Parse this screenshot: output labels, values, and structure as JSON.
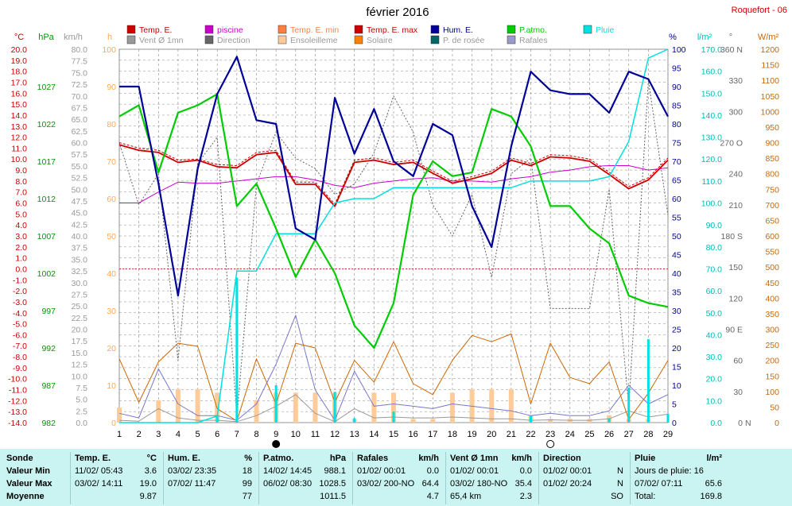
{
  "header": {
    "title": "février 2016",
    "station": "Roquefort - 06"
  },
  "colors": {
    "temp": "#cc0000",
    "temp_min": "#ff7f3f",
    "temp_max": "#cc0000",
    "pool": "#cc00cc",
    "wind": "#999999",
    "direction": "#666666",
    "sunshine": "#ffcc99",
    "solar": "#cc6600",
    "humidity": "#000099",
    "pressure": "#00cc00",
    "rain": "#00e0e0",
    "dewpoint": "#006666",
    "gusts": "#7777cc",
    "axis_temp": "#cc0000",
    "axis_press": "#009900",
    "axis_wind": "#999999",
    "axis_sun": "#ffaa55",
    "axis_hum": "#000099",
    "axis_rain": "#00bbbb",
    "axis_dir": "#666666",
    "axis_solar": "#cc6600"
  },
  "legend": [
    {
      "label": "Temp. E.",
      "color": "#cc0000"
    },
    {
      "label": "piscine",
      "color": "#cc00cc"
    },
    {
      "label": "Temp. E. min",
      "color": "#ff7f3f"
    },
    {
      "label": "Temp. E. max",
      "color": "#cc0000"
    },
    {
      "label": "Hum. E.",
      "color": "#000099"
    },
    {
      "label": "P.atmo.",
      "color": "#00cc00"
    },
    {
      "label": "Pluie",
      "color": "#00e0e0"
    },
    {
      "label": "Vent Ø 1mn",
      "color": "#999999"
    },
    {
      "label": "Direction",
      "color": "#666666"
    },
    {
      "label": "Ensoleilleme",
      "color": "#ffcc99"
    },
    {
      "label": "Solaire",
      "color": "#ff7f00"
    },
    {
      "label": "P. de rosée",
      "color": "#006666"
    },
    {
      "label": "Rafales",
      "color": "#9999cc"
    }
  ],
  "axes": {
    "temp_unit": "°C",
    "press_unit": "hPa",
    "wind_unit": "km/h",
    "sun_unit": "h",
    "hum_unit": "%",
    "rain_unit": "l/m²",
    "dir_unit": "°",
    "solar_unit": "W/m²"
  },
  "chart_data": {
    "type": "line",
    "title": "février 2016",
    "x": [
      1,
      2,
      3,
      4,
      5,
      6,
      7,
      8,
      9,
      10,
      11,
      12,
      13,
      14,
      15,
      16,
      17,
      18,
      19,
      20,
      21,
      22,
      23,
      24,
      25,
      26,
      27,
      28,
      29
    ],
    "xlim": [
      1,
      29
    ],
    "x_markers": [
      {
        "day": 9,
        "symbol": "new-moon"
      },
      {
        "day": 23,
        "symbol": "full-moon"
      }
    ],
    "left_temp_axis": {
      "ylim": [
        -14,
        20
      ],
      "step": 1
    },
    "left_pressure_axis": {
      "ylim": [
        982,
        1032
      ],
      "ticks": [
        982,
        987,
        992,
        997,
        1002,
        1007,
        1012,
        1017,
        1022,
        1027
      ]
    },
    "left_wind_axis": {
      "ylim": [
        0,
        80
      ],
      "step": 2.5
    },
    "left_sun_axis": {
      "ylim": [
        0,
        100
      ],
      "step": 10
    },
    "right_hum_axis": {
      "ylim": [
        0,
        100
      ],
      "step": 5
    },
    "right_rain_axis": {
      "ylim": [
        0,
        170
      ],
      "step": 10
    },
    "right_dir_axis": {
      "ylim": [
        0,
        360
      ],
      "ticks": [
        0,
        30,
        60,
        90,
        120,
        150,
        180,
        210,
        240,
        270,
        300,
        330,
        360
      ],
      "tick_text": [
        "0",
        "30",
        "60",
        "90 E",
        "120",
        "150",
        "180 S",
        "210",
        "240",
        "270 O",
        "300",
        "330",
        "360 N"
      ],
      "cardinal_ticks": [
        0,
        360
      ]
    },
    "right_solar_axis": {
      "ylim": [
        0,
        1200
      ],
      "step": 50
    },
    "series": [
      {
        "name": "Temp. E.",
        "axis": "temp",
        "values": [
          11.3,
          10.8,
          10.6,
          9.7,
          9.9,
          9.3,
          9.2,
          10.4,
          10.6,
          7.7,
          7.7,
          5.7,
          9.7,
          9.9,
          9.5,
          9.7,
          8.7,
          7.8,
          8.2,
          8.7,
          9.9,
          9.4,
          10.2,
          10.1,
          9.8,
          8.6,
          7.3,
          8.1,
          9.9
        ]
      },
      {
        "name": "Temp. E. max",
        "axis": "temp",
        "values": [
          11.5,
          11.0,
          10.8,
          9.9,
          10.0,
          9.5,
          9.4,
          10.6,
          10.8,
          7.9,
          7.9,
          5.9,
          9.9,
          10.1,
          9.7,
          9.9,
          8.9,
          8.0,
          8.4,
          8.9,
          10.1,
          9.6,
          10.4,
          10.3,
          10.0,
          8.8,
          7.5,
          8.3,
          10.1
        ]
      },
      {
        "name": "piscine",
        "axis": "temp",
        "values": [
          6.0,
          6.0,
          7.0,
          7.9,
          7.8,
          7.8,
          8.0,
          8.2,
          8.4,
          8.4,
          8.1,
          7.6,
          7.4,
          7.8,
          8.0,
          8.2,
          8.3,
          8.0,
          8.0,
          7.9,
          8.2,
          8.4,
          8.8,
          9.0,
          9.3,
          9.4,
          9.4,
          9.0,
          9.2
        ]
      },
      {
        "name": "Hum. E.",
        "axis": "hum",
        "values": [
          90,
          90,
          64,
          34,
          68,
          88,
          98,
          81,
          80,
          52,
          49,
          87,
          72,
          84,
          70,
          66,
          80,
          77,
          58,
          47,
          74,
          94,
          89,
          88,
          88,
          83,
          94,
          92,
          82
        ]
      },
      {
        "name": "P.atmo.",
        "axis": "press",
        "values": [
          1023.0,
          1024.5,
          1015.5,
          1023.5,
          1024.5,
          1026.0,
          1011.0,
          1014.0,
          1008.0,
          1001.5,
          1006.5,
          1002.0,
          995.0,
          992.0,
          998.0,
          1012.5,
          1017.0,
          1015.0,
          1015.5,
          1024.0,
          1023.0,
          1019.0,
          1011.0,
          1011.0,
          1008.0,
          1006.0,
          999.0,
          998.0,
          997.5
        ]
      },
      {
        "name": "Pluie",
        "axis": "rain",
        "values": [
          0,
          0,
          0,
          0,
          0,
          3,
          69,
          69,
          86,
          86,
          86,
          100,
          102,
          102,
          107,
          107,
          107,
          107,
          107,
          107,
          107,
          110,
          110,
          110,
          110,
          112,
          128,
          166,
          170
        ]
      },
      {
        "name": "Solaire",
        "axis": "solar",
        "values": [
          205,
          65,
          195,
          255,
          245,
          45,
          5,
          205,
          60,
          255,
          240,
          65,
          200,
          130,
          260,
          125,
          90,
          200,
          280,
          260,
          285,
          60,
          255,
          145,
          125,
          195,
          10,
          95,
          200
        ]
      },
      {
        "name": "Rafales",
        "axis": "wind",
        "values": [
          2.0,
          1.0,
          11.5,
          4.0,
          1.5,
          1.5,
          0.5,
          4.0,
          12.5,
          23.0,
          7.0,
          0.5,
          11.0,
          3.5,
          4.0,
          3.5,
          3.0,
          4.0,
          3.5,
          3.0,
          2.5,
          1.5,
          2.0,
          1.5,
          1.5,
          2.5,
          8.0,
          4.0,
          6.0
        ]
      },
      {
        "name": "Vent Ø 1mn",
        "axis": "wind",
        "values": [
          0.5,
          0.3,
          3.0,
          1.0,
          0.5,
          0.5,
          0.2,
          1.5,
          3.5,
          6.0,
          2.0,
          0.2,
          3.0,
          1.0,
          1.2,
          1.0,
          1.0,
          1.2,
          1.0,
          0.8,
          0.8,
          0.5,
          0.6,
          0.5,
          0.5,
          0.8,
          2.5,
          1.2,
          1.8
        ]
      },
      {
        "name": "Direction",
        "axis": "dir",
        "values": [
          270,
          210,
          240,
          60,
          250,
          275,
          5,
          230,
          280,
          255,
          245,
          220,
          230,
          260,
          315,
          280,
          210,
          180,
          220,
          140,
          240,
          255,
          110,
          110,
          110,
          225,
          15,
          330,
          200
        ]
      },
      {
        "name": "Ensoleilleme",
        "axis": "sun",
        "type": "bar",
        "values": [
          4,
          0,
          6,
          9,
          9,
          8,
          0,
          6,
          8,
          8,
          8,
          8,
          1,
          8,
          8,
          1,
          1,
          8,
          9,
          9,
          9,
          2,
          1,
          1,
          1,
          2,
          1,
          1,
          0
        ]
      }
    ]
  },
  "summary": {
    "sonde": {
      "title": "Sonde",
      "rows": [
        "Valeur Min",
        "Valeur Max",
        "Moyenne"
      ]
    },
    "temp": {
      "title": "Temp. E.",
      "unit": "°C",
      "min_date": "11/02/ 05:43",
      "min_val": "3.6",
      "max_date": "03/02/ 14:11",
      "max_val": "19.0",
      "avg": "9.87"
    },
    "hum": {
      "title": "Hum. E.",
      "unit": "%",
      "min_date": "03/02/ 23:35",
      "min_val": "18",
      "max_date": "07/02/ 11:47",
      "max_val": "99",
      "avg": "77"
    },
    "press": {
      "title": "P.atmo.",
      "unit": "hPa",
      "min_date": "14/02/ 14:45",
      "min_val": "988.1",
      "max_date": "06/02/ 08:30",
      "max_val": "1028.5",
      "avg": "1011.5"
    },
    "gust": {
      "title": "Rafales",
      "unit": "km/h",
      "min_date": "01/02/ 00:01",
      "min_val": "0.0",
      "max_date": "03/02/ 200-NO",
      "max_val": "64.4",
      "avg": "4.7"
    },
    "wind": {
      "title": "Vent Ø 1mn",
      "unit": "km/h",
      "min_date": "01/02/ 00:01",
      "min_val": "0.0",
      "max_date": "03/02/ 180-NO",
      "max_val": "35.4",
      "avg_left": "65,4 km",
      "avg": "2.3"
    },
    "dir": {
      "title": "Direction",
      "min_date": "01/02/ 00:01",
      "min_val": "N",
      "max_date": "01/02/ 20:24",
      "max_val": "N",
      "avg": "SO"
    },
    "rain": {
      "title": "Pluie",
      "unit": "l/m²",
      "row1": "Jours de pluie: 16",
      "row2_date": "07/02/ 07:11",
      "row2_val": "65.6",
      "row3_label": "Total:",
      "row3_val": "169.8"
    }
  }
}
